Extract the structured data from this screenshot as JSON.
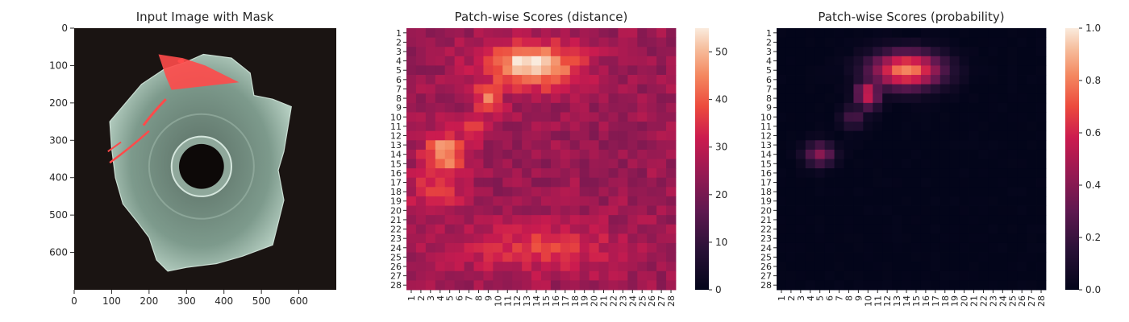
{
  "chart_data": [
    {
      "type": "image",
      "title": "Input Image with Mask",
      "x_ticks": [
        0,
        100,
        200,
        300,
        400,
        500,
        600
      ],
      "y_ticks": [
        0,
        100,
        200,
        300,
        400,
        500,
        600
      ],
      "xlim": [
        0,
        700
      ],
      "ylim": [
        700,
        0
      ],
      "mask_color": "#ff4a4a",
      "background_color": "#1a1412",
      "part_color": "#7d9a8c"
    },
    {
      "type": "heatmap",
      "title": "Patch-wise Scores (distance)",
      "x_ticks": [
        "1",
        "2",
        "3",
        "4",
        "5",
        "6",
        "7",
        "8",
        "9",
        "10",
        "11",
        "12",
        "13",
        "14",
        "15",
        "16",
        "17",
        "18",
        "19",
        "20",
        "21",
        "22",
        "23",
        "24",
        "25",
        "26",
        "27",
        "28"
      ],
      "y_ticks": [
        "1",
        "2",
        "3",
        "4",
        "5",
        "6",
        "7",
        "8",
        "9",
        "10",
        "11",
        "12",
        "13",
        "14",
        "15",
        "16",
        "17",
        "18",
        "19",
        "20",
        "21",
        "22",
        "23",
        "24",
        "25",
        "26",
        "27",
        "28"
      ],
      "colorbar": {
        "min": 0,
        "max": 55,
        "ticks": [
          0,
          10,
          20,
          30,
          40,
          50
        ]
      },
      "colormap": "rocket",
      "background_level": 25,
      "hotspots": [
        {
          "row": 4.5,
          "col": 13.5,
          "rx": 4.5,
          "ry": 2.2,
          "value": 55
        },
        {
          "row": 8,
          "col": 9,
          "rx": 1.5,
          "ry": 1.8,
          "value": 42
        },
        {
          "row": 11,
          "col": 7.5,
          "rx": 1.4,
          "ry": 1.6,
          "value": 38
        },
        {
          "row": 14,
          "col": 4.5,
          "rx": 2,
          "ry": 2.2,
          "value": 48
        },
        {
          "row": 18,
          "col": 3.5,
          "rx": 2.5,
          "ry": 2.5,
          "value": 36
        },
        {
          "row": 24,
          "col": 14,
          "rx": 8,
          "ry": 2.5,
          "value": 36
        }
      ]
    },
    {
      "type": "heatmap",
      "title": "Patch-wise Scores (probability)",
      "x_ticks": [
        "1",
        "2",
        "3",
        "4",
        "5",
        "6",
        "7",
        "8",
        "9",
        "10",
        "11",
        "12",
        "13",
        "14",
        "15",
        "16",
        "17",
        "18",
        "19",
        "20",
        "21",
        "22",
        "23",
        "24",
        "25",
        "26",
        "27",
        "28"
      ],
      "y_ticks": [
        "1",
        "2",
        "3",
        "4",
        "5",
        "6",
        "7",
        "8",
        "9",
        "10",
        "11",
        "12",
        "13",
        "14",
        "15",
        "16",
        "17",
        "18",
        "19",
        "20",
        "21",
        "22",
        "23",
        "24",
        "25",
        "26",
        "27",
        "28"
      ],
      "colorbar": {
        "min": 0,
        "max": 1,
        "ticks": [
          "0.0",
          "0.2",
          "0.4",
          "0.6",
          "0.8",
          "1.0"
        ]
      },
      "colormap": "rocket",
      "background_level": 0.0,
      "hotspots": [
        {
          "row": 5,
          "col": 14,
          "rx": 3.5,
          "ry": 1.8,
          "value": 0.82
        },
        {
          "row": 7.5,
          "col": 10,
          "rx": 1.2,
          "ry": 1.5,
          "value": 0.6
        },
        {
          "row": 10,
          "col": 8.5,
          "rx": 1.2,
          "ry": 1.2,
          "value": 0.25
        },
        {
          "row": 14,
          "col": 5,
          "rx": 1.5,
          "ry": 1.2,
          "value": 0.4
        }
      ]
    }
  ]
}
